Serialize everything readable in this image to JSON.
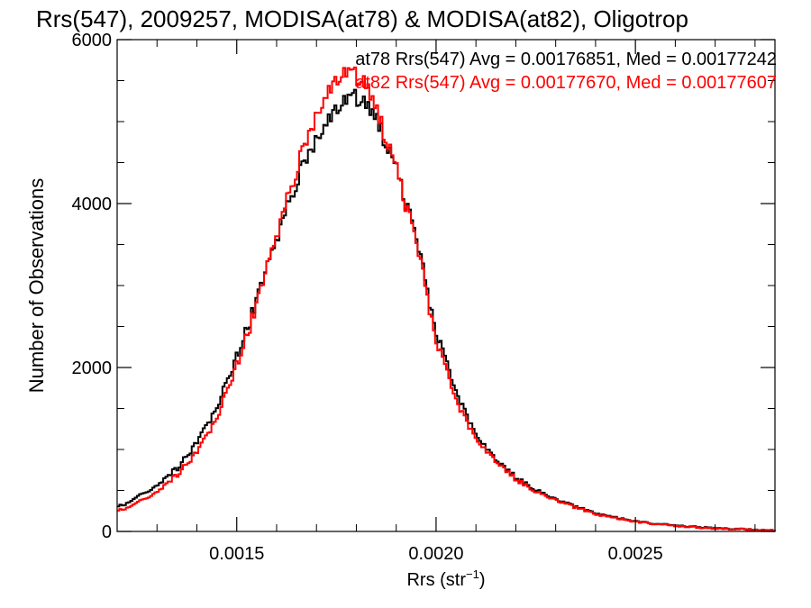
{
  "chart_data": {
    "type": "line",
    "step": true,
    "title": "Rrs(547), 2009257, MODISA(at78) & MODISA(at82), Oligotrop",
    "xlabel": "Rrs (str",
    "xlabel_sup": "−1",
    "xlabel_close": ")",
    "ylabel": "Number of Observations",
    "xlim": [
      0.0012,
      0.00285
    ],
    "ylim": [
      0,
      6000
    ],
    "xticks": [
      0.0015,
      0.002,
      0.0025
    ],
    "xtick_labels": [
      "0.0015",
      "0.0020",
      "0.0025"
    ],
    "yticks": [
      0,
      2000,
      4000,
      6000
    ],
    "ytick_labels": [
      "0",
      "2000",
      "4000",
      "6000"
    ],
    "grid": false,
    "legend_position": "top-right",
    "series": [
      {
        "name": "at78 Rrs(547) Avg = 0.00176851, Med = 0.00177242",
        "color": "#000000",
        "x": [
          0.0012,
          0.00125,
          0.0013,
          0.00135,
          0.0014,
          0.00145,
          0.0015,
          0.00155,
          0.0016,
          0.00165,
          0.0017,
          0.00173,
          0.00176,
          0.00178,
          0.0018,
          0.00182,
          0.00185,
          0.0019,
          0.00195,
          0.002,
          0.00205,
          0.0021,
          0.00215,
          0.0022,
          0.00225,
          0.0023,
          0.0024,
          0.0025,
          0.0026,
          0.0027,
          0.0028,
          0.00285
        ],
        "y": [
          300,
          420,
          580,
          780,
          1100,
          1550,
          2150,
          2850,
          3600,
          4300,
          4850,
          5050,
          5200,
          5280,
          5300,
          5250,
          5000,
          4400,
          3500,
          2400,
          1650,
          1150,
          850,
          650,
          500,
          380,
          220,
          120,
          70,
          40,
          20,
          10
        ]
      },
      {
        "name": "at82 Rrs(547) Avg = 0.00177670, Med = 0.00177607",
        "color": "#ff0000",
        "x": [
          0.0012,
          0.00125,
          0.0013,
          0.00135,
          0.0014,
          0.00145,
          0.0015,
          0.00155,
          0.0016,
          0.00165,
          0.0017,
          0.00173,
          0.00176,
          0.00178,
          0.0018,
          0.00182,
          0.00185,
          0.0019,
          0.00195,
          0.002,
          0.00205,
          0.0021,
          0.00215,
          0.0022,
          0.00225,
          0.0023,
          0.0024,
          0.0025,
          0.0026,
          0.0027,
          0.0028,
          0.00285
        ],
        "y": [
          250,
          350,
          500,
          700,
          980,
          1420,
          2050,
          2800,
          3650,
          4450,
          5150,
          5400,
          5550,
          5600,
          5550,
          5500,
          5100,
          4400,
          3450,
          2300,
          1550,
          1100,
          830,
          630,
          480,
          370,
          210,
          115,
          65,
          35,
          18,
          8
        ]
      }
    ]
  }
}
